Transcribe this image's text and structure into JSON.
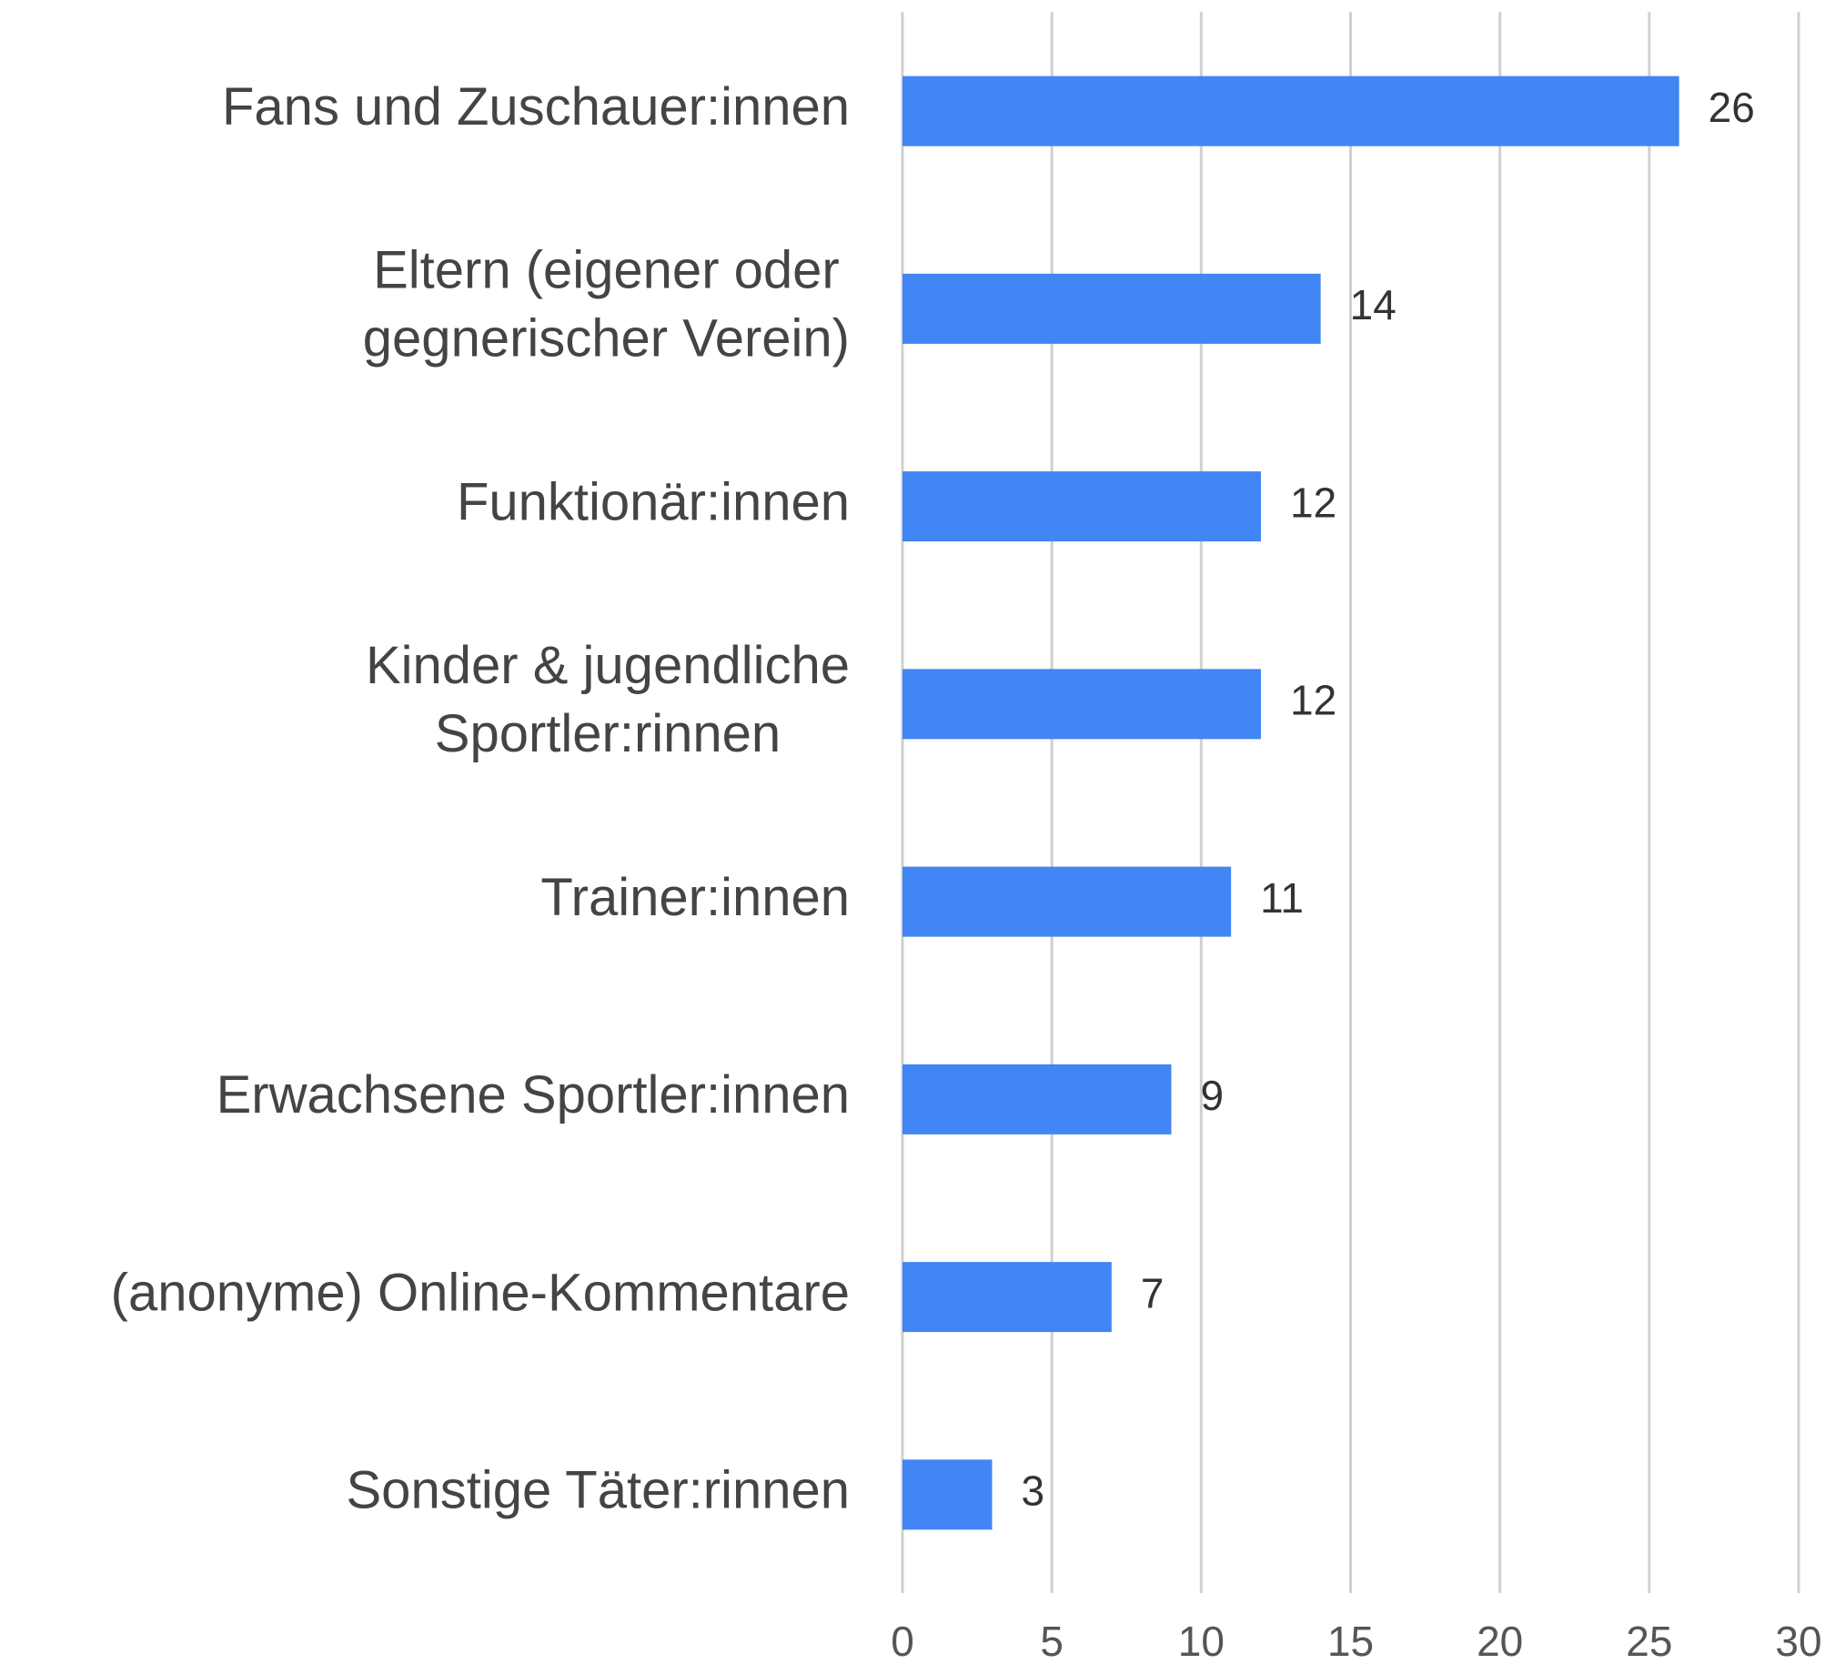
{
  "chart_data": {
    "type": "hbar",
    "categories": [
      [
        "Fans und Zuschauer:innen"
      ],
      [
        "Eltern (eigener oder",
        "gegnerischer Verein)"
      ],
      [
        "Funktionär:innen"
      ],
      [
        "Kinder & jugendliche",
        "Sportler:rinnen"
      ],
      [
        "Trainer:innen"
      ],
      [
        "Erwachsene Sportler:innen"
      ],
      [
        "(anonyme) Online-Kommentare"
      ],
      [
        "Sonstige Täter:rinnen"
      ]
    ],
    "values": [
      26,
      14,
      12,
      12,
      11,
      9,
      7,
      3
    ],
    "color": "#4285f4",
    "xlim": [
      0,
      30
    ],
    "xticks": [
      0,
      5,
      10,
      15,
      20,
      25,
      30
    ],
    "grid": true
  }
}
